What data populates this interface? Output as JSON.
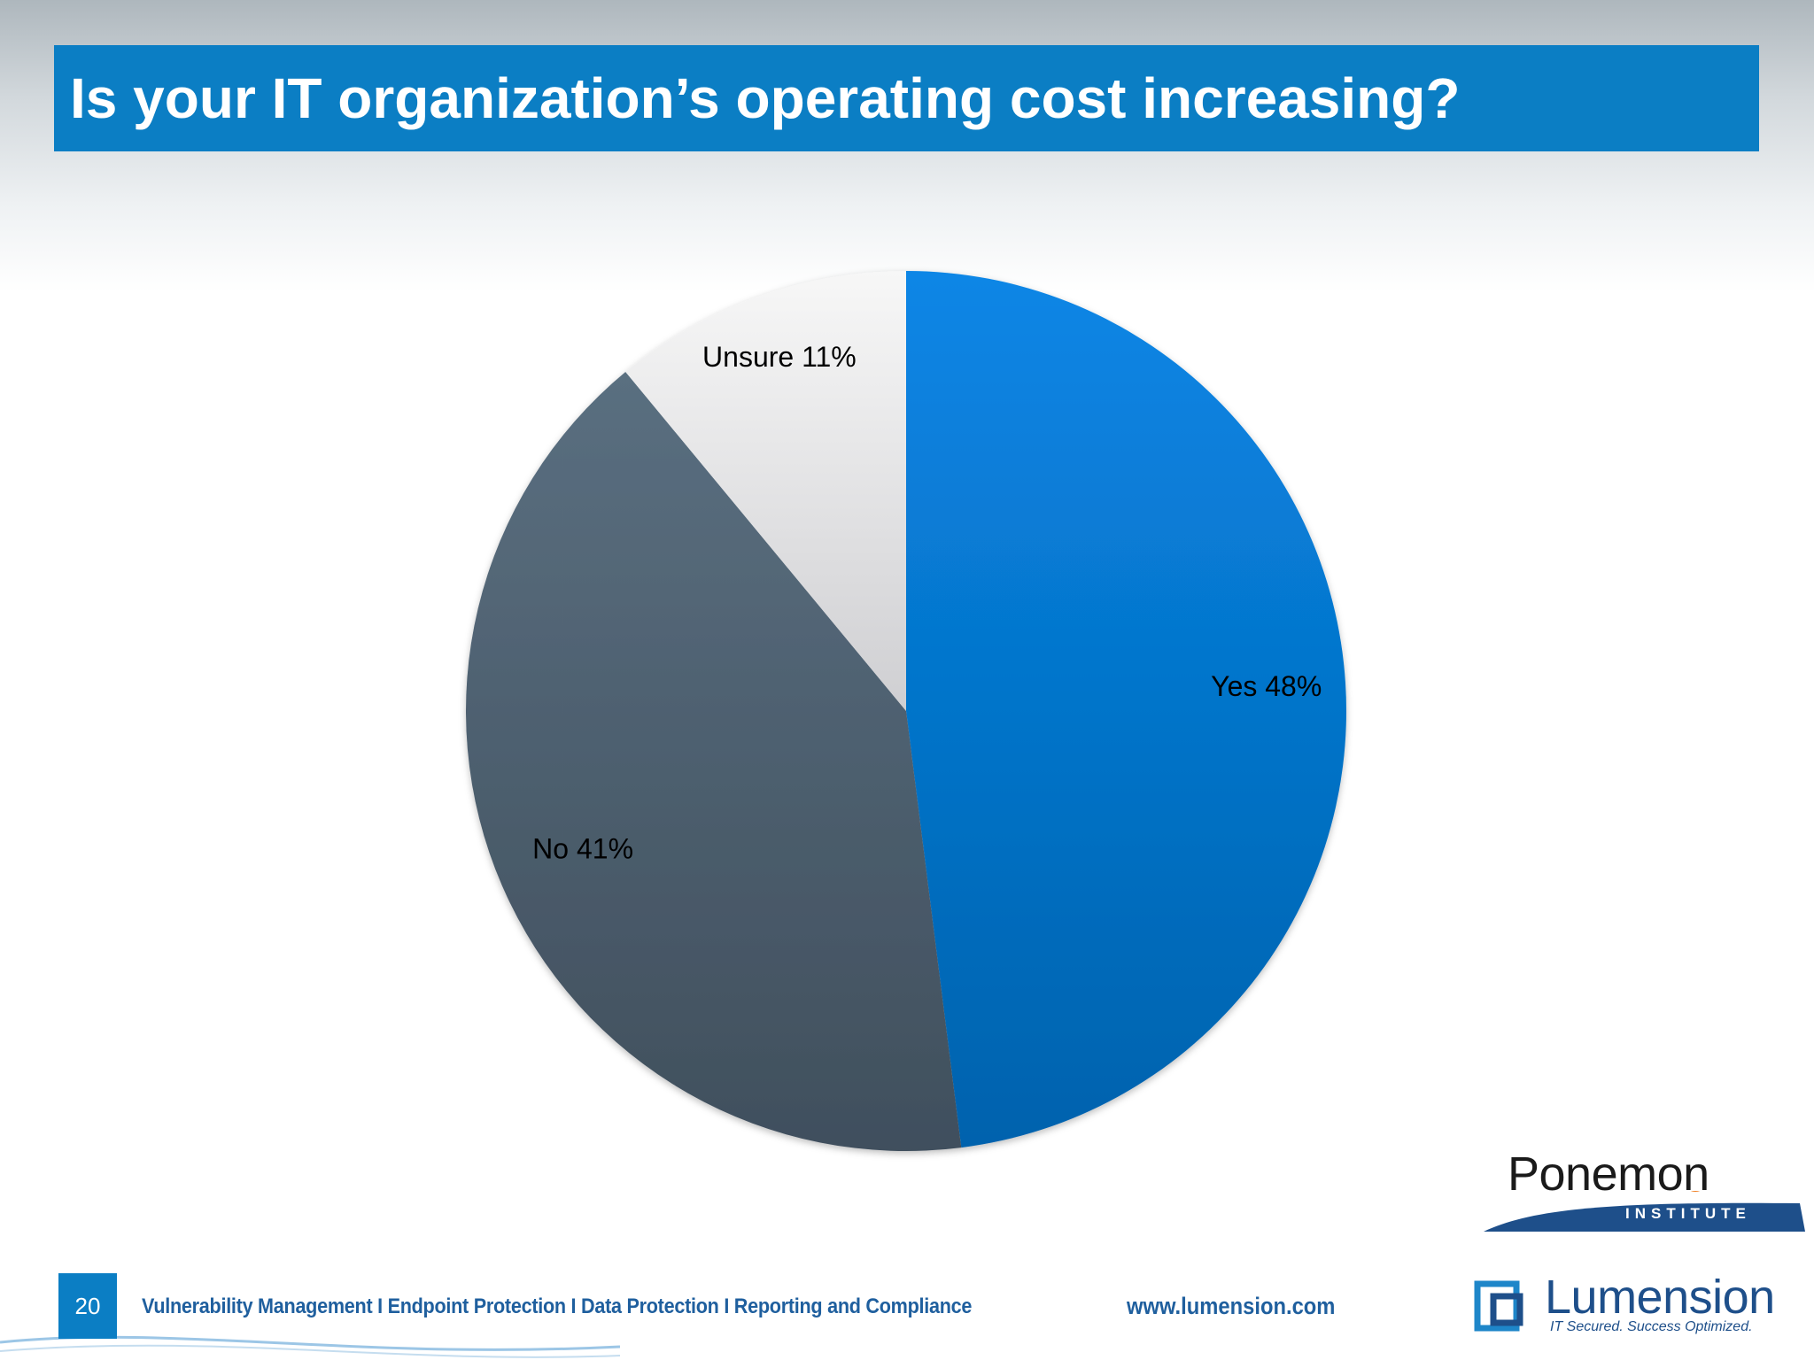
{
  "slide": {
    "title": "Is your IT organization’s operating cost increasing?",
    "page_number": "20",
    "footer_text": "Vulnerability Management I Endpoint Protection I Data Protection I Reporting and Compliance",
    "footer_url": "www.lumension.com"
  },
  "logos": {
    "ponemon_name": "Ponemon",
    "ponemon_sub": "INSTITUTE",
    "lumension_name": "Lumension",
    "lumension_tag": "IT Secured. Success Optimized."
  },
  "colors": {
    "title_bar": "#0b7ec4",
    "accent": "#f07c1e"
  },
  "chart_data": {
    "type": "pie",
    "start_angle_deg": 0,
    "direction": "clockwise",
    "slices": [
      {
        "label": "Yes 48%",
        "value": 48,
        "color": "#0a74cc"
      },
      {
        "label": "No 41%",
        "value": 41,
        "color": "#4f6375"
      },
      {
        "label": "Unsure 11%",
        "value": 11,
        "color": "#e8e8ea"
      }
    ]
  }
}
